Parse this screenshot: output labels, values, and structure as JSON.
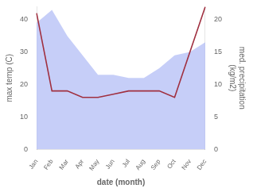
{
  "chart_data": {
    "type": "line",
    "categories": [
      "Jan",
      "Feb",
      "Mar",
      "Apr",
      "May",
      "Jun",
      "Jul",
      "Aug",
      "Sep",
      "Oct",
      "Nov",
      "Dec"
    ],
    "series": [
      {
        "type": "area",
        "color": "#b3bef5",
        "values": [
          39,
          43,
          35,
          29,
          23,
          23,
          22,
          22,
          25,
          29,
          30,
          33
        ]
      },
      {
        "type": "line",
        "color": "#a03040",
        "axis": "y2",
        "values": [
          21,
          9,
          9,
          8,
          8,
          8.5,
          9,
          9,
          9,
          8,
          15,
          22
        ]
      }
    ],
    "xlabel": "date (month)",
    "ylabel": "max temp (C)",
    "y2label": "med. precipitation\n(kg/m2)",
    "ylim": [
      0,
      44
    ],
    "yticks": [
      0,
      10,
      20,
      30,
      40
    ],
    "y2lim": [
      0,
      22
    ],
    "y2ticks": [
      0,
      5,
      10,
      15,
      20
    ],
    "grid": false
  }
}
